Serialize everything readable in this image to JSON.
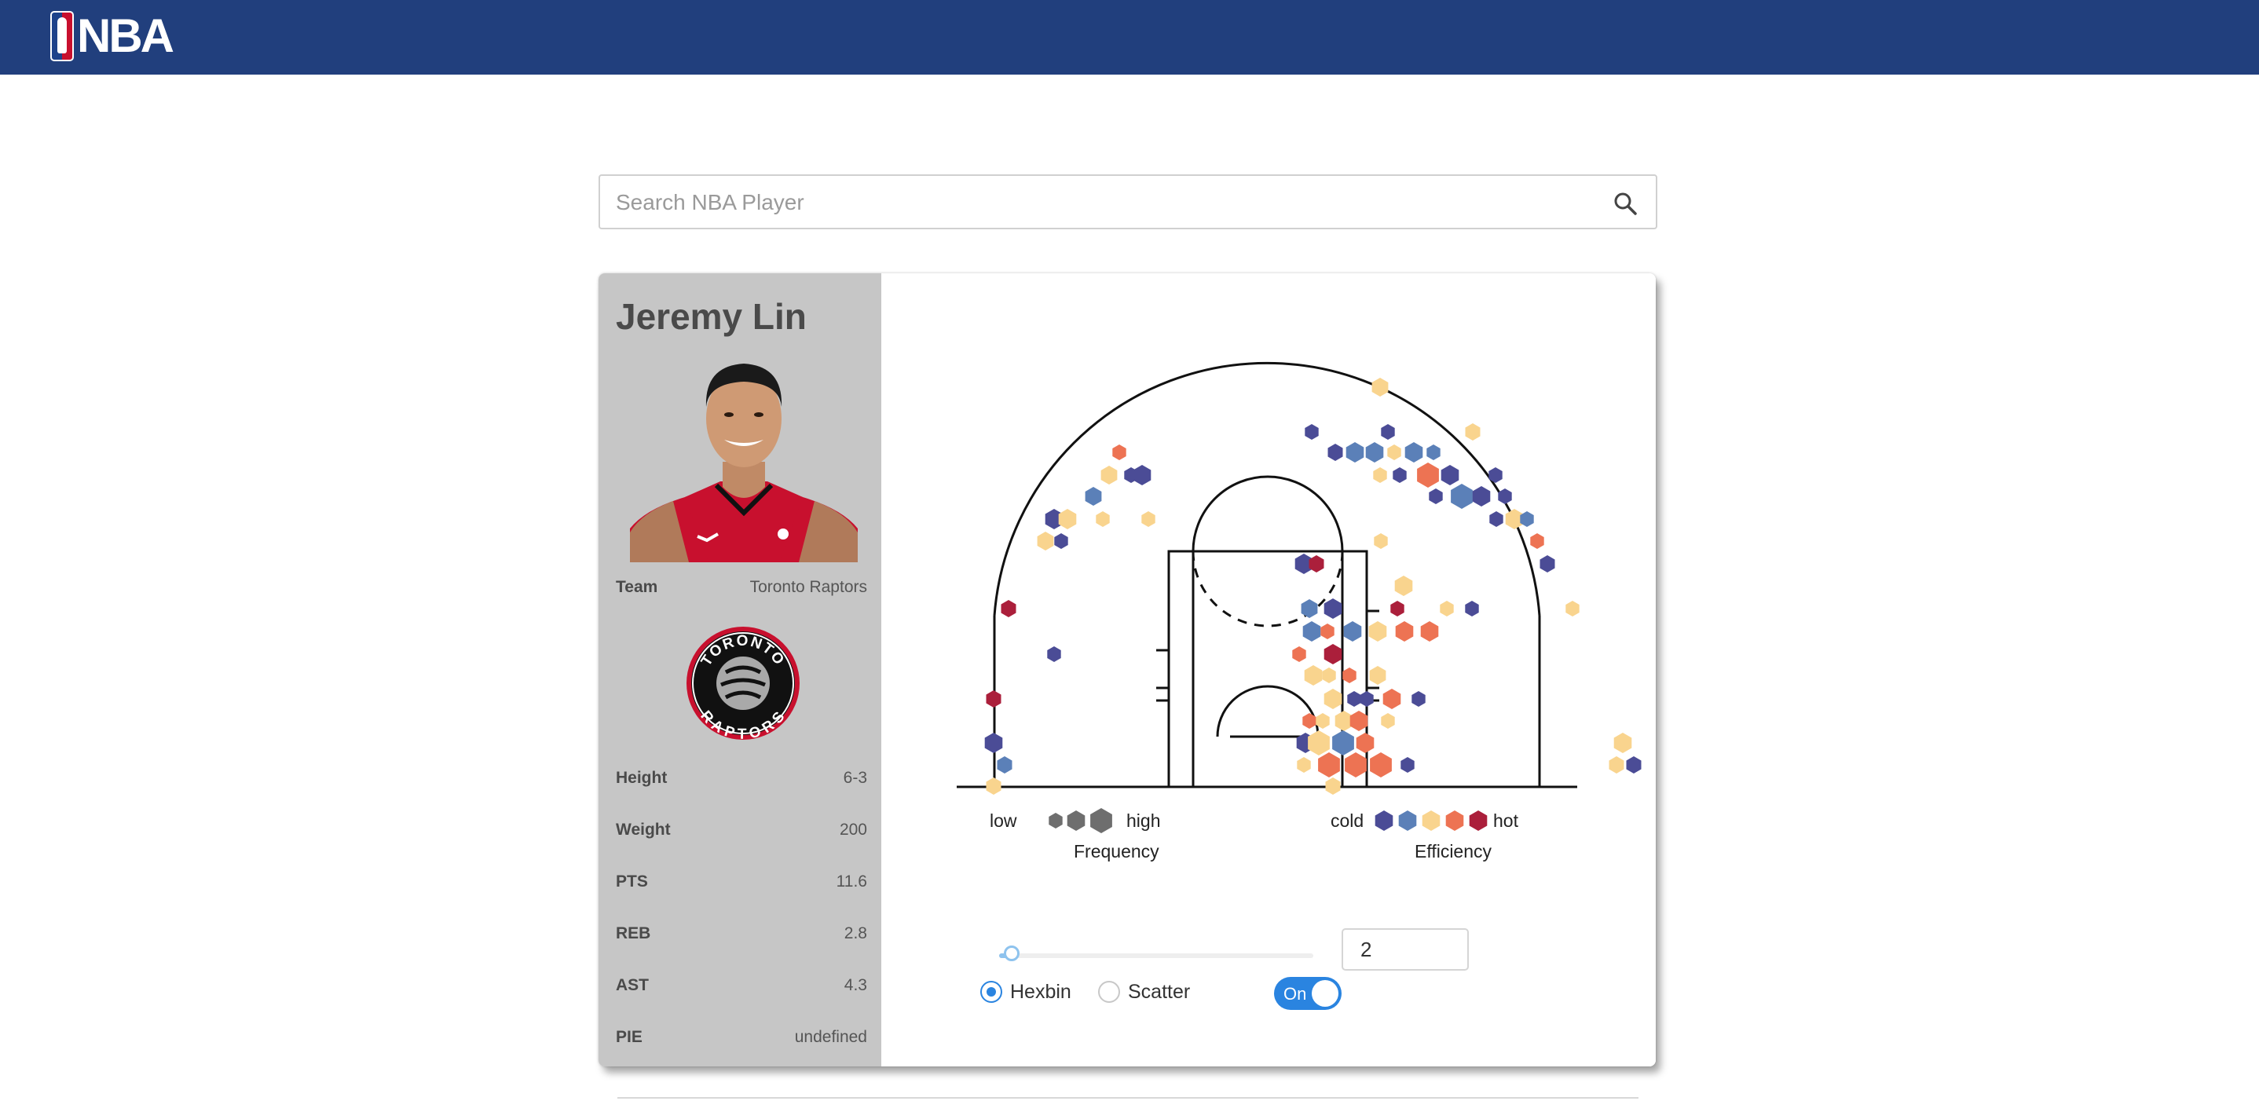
{
  "header": {
    "logo_text": "NBA",
    "logo_icon": "nba-logo-icon",
    "brand_color": "#213f7d"
  },
  "search": {
    "placeholder": "Search NBA Player",
    "value": "",
    "icon": "search-icon"
  },
  "player": {
    "name": "Jeremy Lin",
    "team_label": "Team",
    "team": "Toronto Raptors",
    "team_logo_text_top": "TORONTO",
    "team_logo_text_bottom": "RAPTORS",
    "stats": [
      {
        "label": "Height",
        "value": "6-3"
      },
      {
        "label": "Weight",
        "value": "200"
      },
      {
        "label": "PTS",
        "value": "11.6"
      },
      {
        "label": "REB",
        "value": "2.8"
      },
      {
        "label": "AST",
        "value": "4.3"
      },
      {
        "label": "PIE",
        "value": "undefined"
      }
    ]
  },
  "legend": {
    "frequency_low": "low",
    "frequency_high": "high",
    "frequency_title": "Frequency",
    "efficiency_cold": "cold",
    "efficiency_hot": "hot",
    "efficiency_title": "Efficiency",
    "efficiency_colors": [
      "#4b4c96",
      "#5b80b8",
      "#f9d48e",
      "#ed7353",
      "#ab1f3b"
    ],
    "frequency_color": "#6e6e6e"
  },
  "controls": {
    "slider_value": 2,
    "min_count_value": "2",
    "chart_types": [
      {
        "label": "Hexbin",
        "checked": true
      },
      {
        "label": "Scatter",
        "checked": false
      }
    ],
    "toggle_label": "On",
    "toggle_on": true,
    "accent_color": "#2a84e0"
  }
}
